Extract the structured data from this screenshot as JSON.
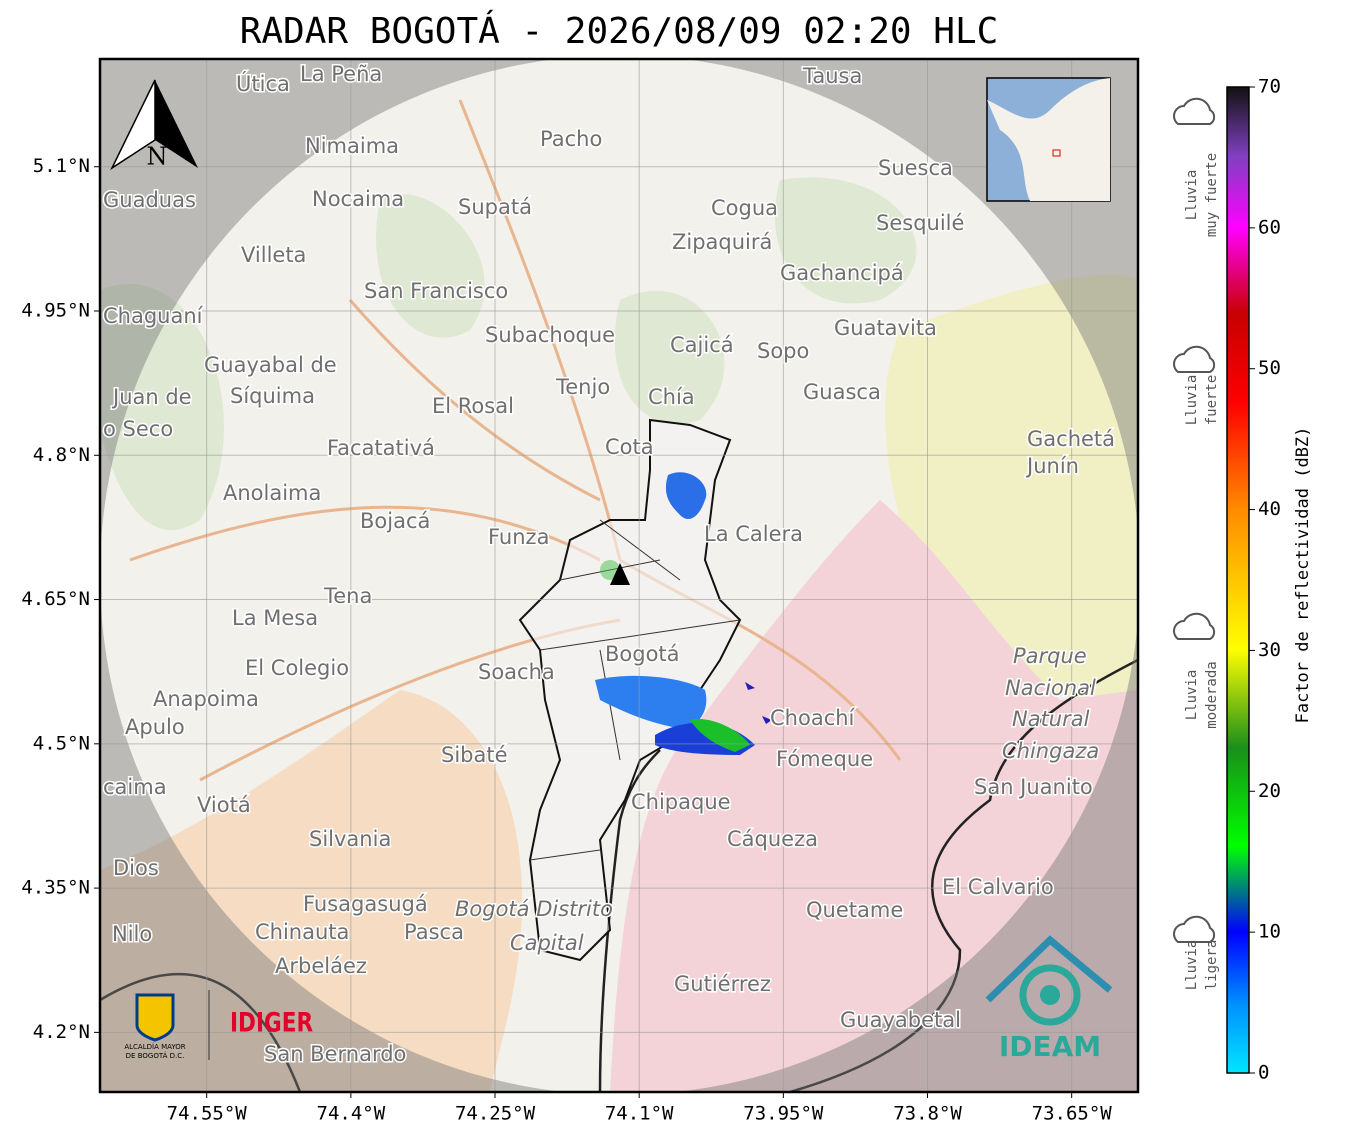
{
  "header": {
    "title": "RADAR BOGOTÁ - 2026/08/09 02:20 HLC"
  },
  "map": {
    "xlim": [
      -74.661,
      -73.581
    ],
    "ylim": [
      4.138,
      5.212
    ],
    "xticks": [
      {
        "value": -74.55,
        "label": "74.55°W"
      },
      {
        "value": -74.4,
        "label": "74.4°W"
      },
      {
        "value": -74.25,
        "label": "74.25°W"
      },
      {
        "value": -74.1,
        "label": "74.1°W"
      },
      {
        "value": -73.95,
        "label": "73.95°W"
      },
      {
        "value": -73.8,
        "label": "73.8°W"
      },
      {
        "value": -73.65,
        "label": "73.65°W"
      }
    ],
    "yticks": [
      {
        "value": 5.1,
        "label": "5.1°N"
      },
      {
        "value": 4.95,
        "label": "4.95°N"
      },
      {
        "value": 4.8,
        "label": "4.8°N"
      },
      {
        "value": 4.65,
        "label": "4.65°N"
      },
      {
        "value": 4.5,
        "label": "4.5°N"
      },
      {
        "value": 4.35,
        "label": "4.35°N"
      },
      {
        "value": 4.2,
        "label": "4.2°N"
      }
    ],
    "north": "N",
    "places": [
      "La Peña",
      "Útica",
      "Tausa",
      "Pacho",
      "Nimaima",
      "Guaduas",
      "Nocaima",
      "Supatá",
      "Cogua",
      "Suesca",
      "Sesquilé",
      "Zipaquirá",
      "Villeta",
      "Gachancipá",
      "San Francisco",
      "Chaguaní",
      "Guatavita",
      "Subachoque",
      "Cajicá",
      "Sopo",
      "Guayabal de",
      "Síquima",
      "Juan de",
      "o Seco",
      "Tenjo",
      "Chía",
      "Guasca",
      "El Rosal",
      "Facatativá",
      "Cota",
      "Gachetá",
      "Junín",
      "Anolaima",
      "Bojacá",
      "Funza",
      "La Calera",
      "Tena",
      "La Mesa",
      "Bogotá",
      "Soacha",
      "El Colegio",
      "Parque",
      "Nacional",
      "Natural",
      "Chingaza",
      "Anapoima",
      "Apulo",
      "Choachí",
      "Sibaté",
      "Fómeque",
      "San Juanito",
      "caima",
      "Viotá",
      "Chipaque",
      "Cáqueza",
      "Silvania",
      "Dios",
      "El Calvario",
      "Fusagasugá",
      "Bogotá Distrito",
      "Capital",
      "Quetame",
      "Nilo",
      "Chinauta",
      "Pasca",
      "Arbeláez",
      "Gutiérrez",
      "Guayabetal",
      "San Bernardo"
    ],
    "logos": {
      "idiger": "IDIGER",
      "alcaldia": [
        "ALCALDÍA MAYOR",
        "DE BOGOTÁ D.C."
      ],
      "ideam": "IDEAM"
    }
  },
  "colorbar": {
    "label": "Factor de reflectividad (dBZ)",
    "lim": [
      0,
      70
    ],
    "ticks": [
      0,
      10,
      20,
      30,
      40,
      50,
      60,
      70
    ],
    "rain": [
      [
        "Lluvia",
        "muy fuerte"
      ],
      [
        "Lluvia",
        "fuerte"
      ],
      [
        "Lluvia",
        "moderada"
      ],
      [
        "Lluvia",
        "ligera"
      ]
    ]
  }
}
